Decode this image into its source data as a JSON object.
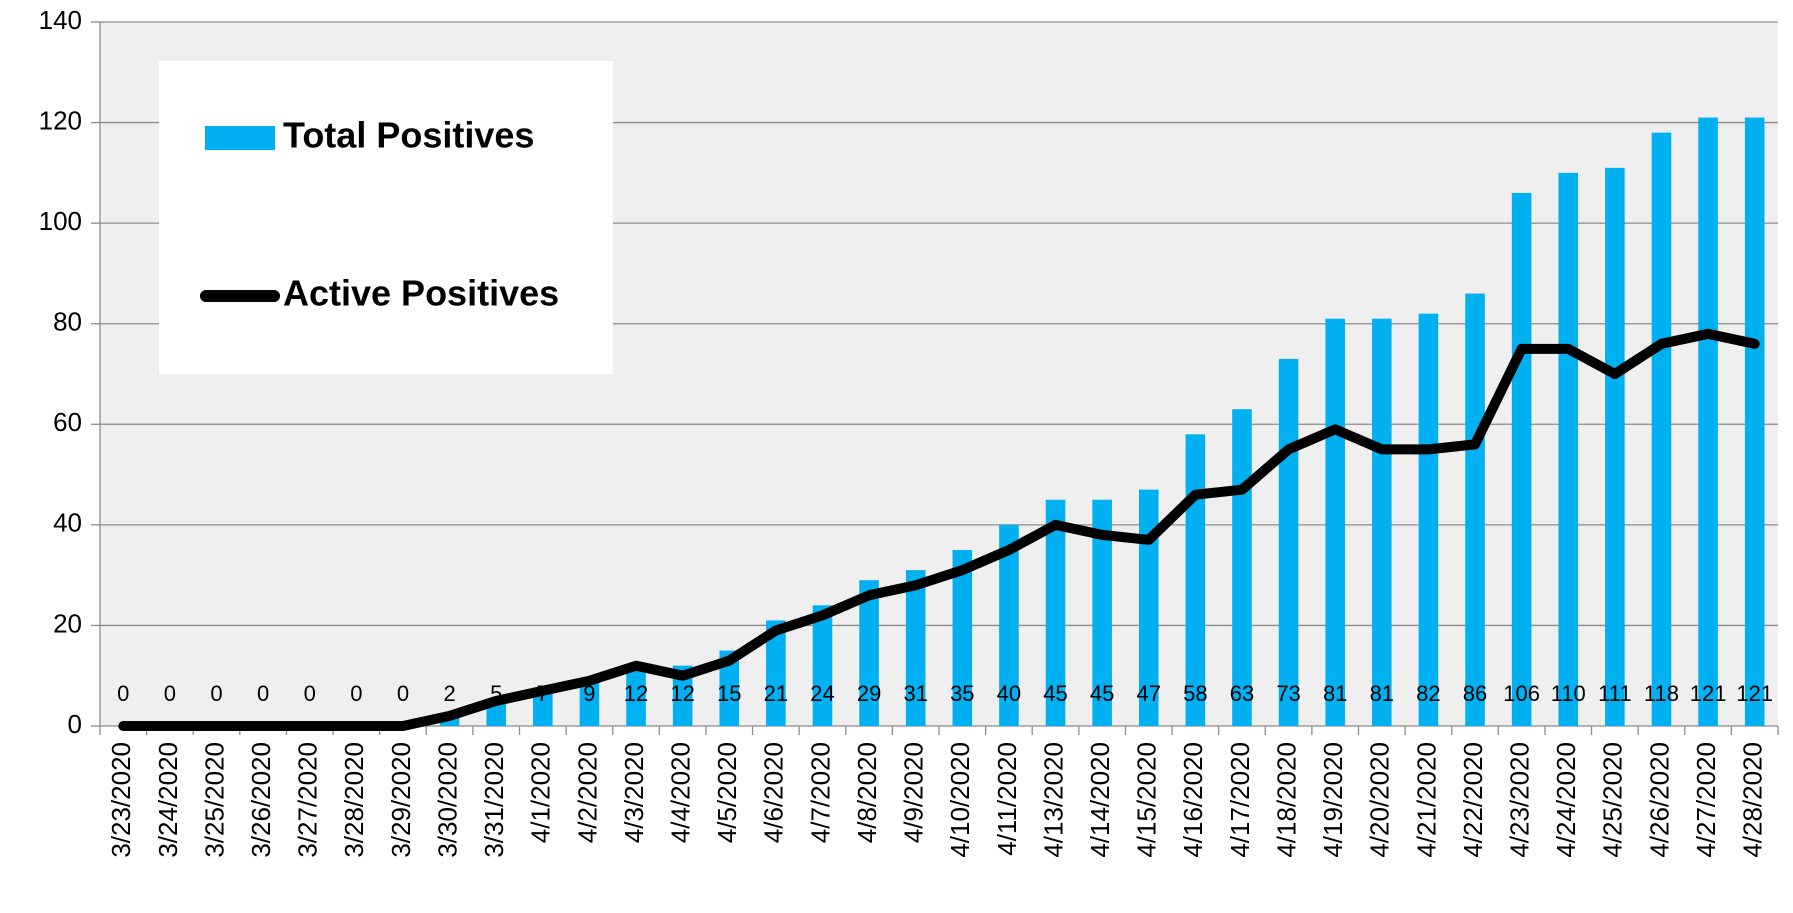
{
  "chart_data": {
    "type": "bar_line",
    "categories": [
      "3/23/2020",
      "3/24/2020",
      "3/25/2020",
      "3/26/2020",
      "3/27/2020",
      "3/28/2020",
      "3/29/2020",
      "3/30/2020",
      "3/31/2020",
      "4/1/2020",
      "4/2/2020",
      "4/3/2020",
      "4/4/2020",
      "4/5/2020",
      "4/6/2020",
      "4/7/2020",
      "4/8/2020",
      "4/9/2020",
      "4/10/2020",
      "4/11/2020",
      "4/13/2020",
      "4/14/2020",
      "4/15/2020",
      "4/16/2020",
      "4/17/2020",
      "4/18/2020",
      "4/19/2020",
      "4/20/2020",
      "4/21/2020",
      "4/22/2020",
      "4/23/2020",
      "4/24/2020",
      "4/25/2020",
      "4/26/2020",
      "4/27/2020",
      "4/28/2020"
    ],
    "series": [
      {
        "name": "Total Positives",
        "type": "bar",
        "color": "#00b0f0",
        "data_labels": true,
        "values": [
          0,
          0,
          0,
          0,
          0,
          0,
          0,
          2,
          5,
          7,
          9,
          12,
          12,
          15,
          21,
          24,
          29,
          31,
          35,
          40,
          45,
          45,
          47,
          58,
          63,
          73,
          81,
          81,
          82,
          86,
          106,
          110,
          111,
          118,
          121,
          121
        ]
      },
      {
        "name": "Active Positives",
        "type": "line",
        "color": "#000000",
        "values": [
          0,
          0,
          0,
          0,
          0,
          0,
          0,
          2,
          5,
          7,
          9,
          12,
          10,
          13,
          19,
          22,
          26,
          28,
          31,
          35,
          40,
          38,
          37,
          46,
          47,
          55,
          59,
          55,
          55,
          56,
          75,
          75,
          70,
          76,
          78,
          76
        ]
      }
    ],
    "ylim": [
      0,
      140
    ],
    "yticks": [
      0,
      20,
      40,
      60,
      80,
      100,
      120,
      140
    ],
    "grid": true
  }
}
